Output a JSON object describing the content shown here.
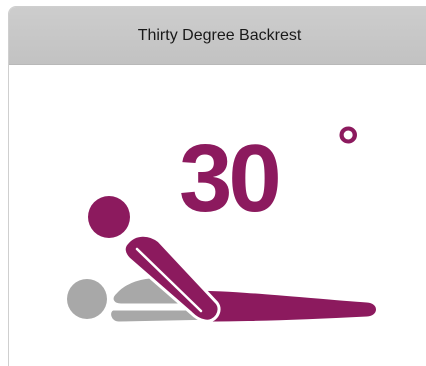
{
  "card": {
    "title": "Thirty Degree Backrest"
  },
  "illustration": {
    "angle_value": "30",
    "angle_unit": "°",
    "colors": {
      "patient": "#8c1a5e",
      "pillow": "#a8a8a8",
      "outline": "#ffffff"
    }
  }
}
